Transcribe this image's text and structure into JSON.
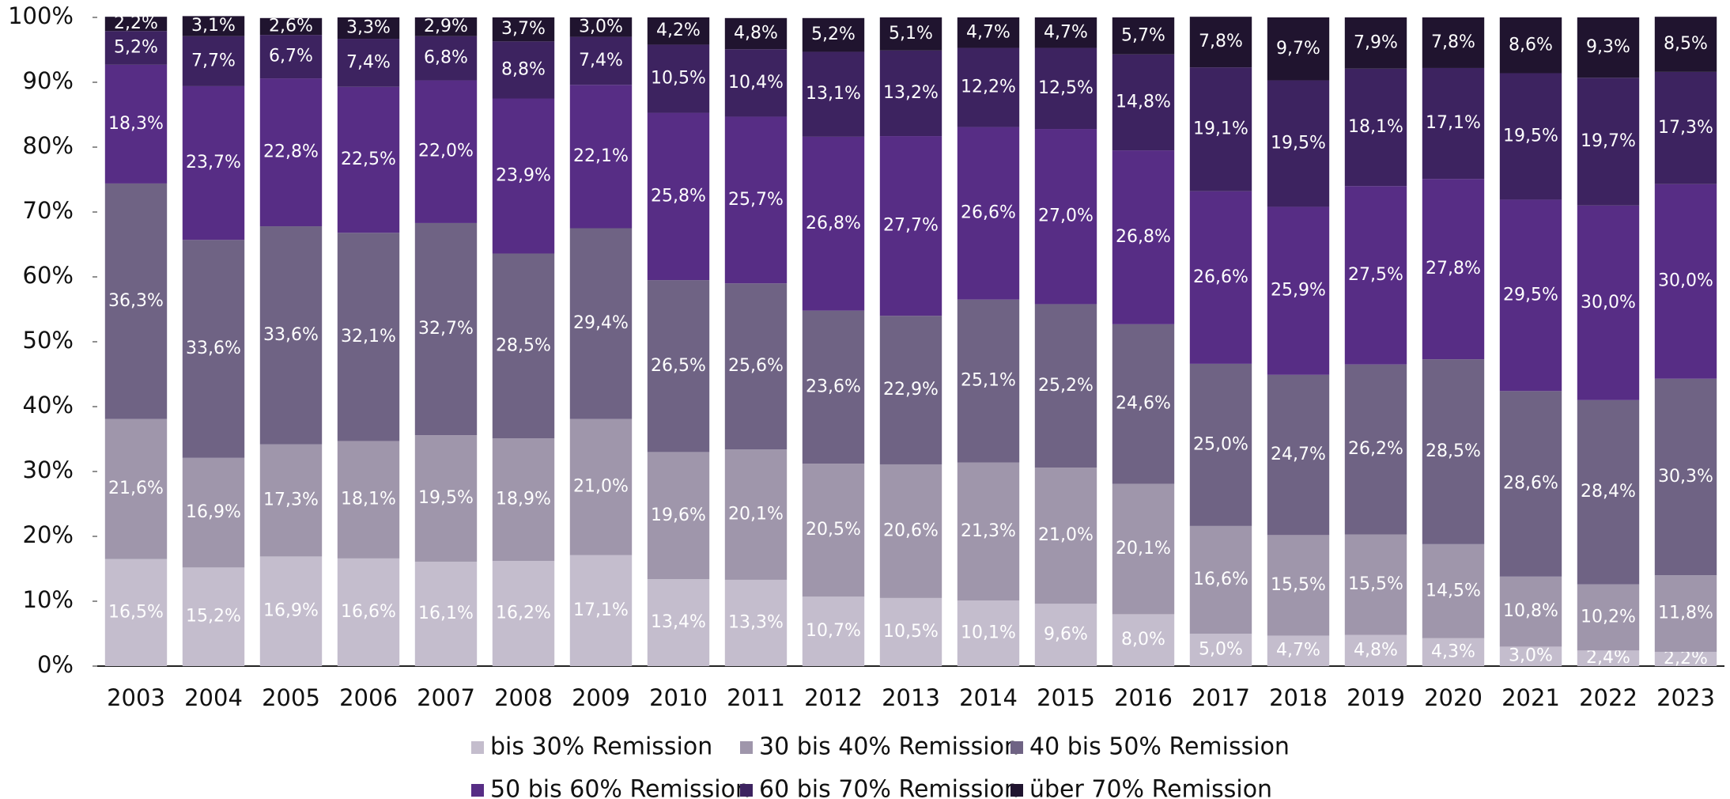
{
  "chart_data": {
    "type": "stacked_bar",
    "categories": [
      "2003",
      "2004",
      "2005",
      "2006",
      "2007",
      "2008",
      "2009",
      "2010",
      "2011",
      "2012",
      "2013",
      "2014",
      "2015",
      "2016",
      "2017",
      "2018",
      "2019",
      "2020",
      "2021",
      "2022",
      "2023"
    ],
    "ylim": [
      0,
      100
    ],
    "yticks": [
      {
        "value": 0,
        "label": "0%"
      },
      {
        "value": 10,
        "label": "10%"
      },
      {
        "value": 20,
        "label": "20%"
      },
      {
        "value": 30,
        "label": "30%"
      },
      {
        "value": 40,
        "label": "40%"
      },
      {
        "value": 50,
        "label": "50%"
      },
      {
        "value": 60,
        "label": "60%"
      },
      {
        "value": 70,
        "label": "70%"
      },
      {
        "value": 80,
        "label": "80%"
      },
      {
        "value": 90,
        "label": "90%"
      },
      {
        "value": 100,
        "label": "100%"
      }
    ],
    "legend": "bottom",
    "series": [
      {
        "name": "bis 30% Remission",
        "color": "#c4bdcd",
        "values": [
          16.5,
          15.2,
          16.9,
          16.6,
          16.1,
          16.2,
          17.1,
          13.4,
          13.3,
          10.7,
          10.5,
          10.1,
          9.6,
          8.0,
          5.0,
          4.7,
          4.8,
          4.3,
          3.0,
          2.4,
          2.2
        ],
        "value_labels": [
          "16,5%",
          "15,2%",
          "16,9%",
          "16,6%",
          "16,1%",
          "16,2%",
          "17,1%",
          "13,4%",
          "13,3%",
          "10,7%",
          "10,5%",
          "10,1%",
          "9,6%",
          "8,0%",
          "5,0%",
          "4,7%",
          "4,8%",
          "4,3%",
          "3,0%",
          "2,4%",
          "2,2%"
        ]
      },
      {
        "name": "30 bis 40% Remission",
        "color": "#9f96ab",
        "values": [
          21.6,
          16.9,
          17.3,
          18.1,
          19.5,
          18.9,
          21.0,
          19.6,
          20.1,
          20.5,
          20.6,
          21.3,
          21.0,
          20.1,
          16.6,
          15.5,
          15.5,
          14.5,
          10.8,
          10.2,
          11.8
        ],
        "value_labels": [
          "21,6%",
          "16,9%",
          "17,3%",
          "18,1%",
          "19,5%",
          "18,9%",
          "21,0%",
          "19,6%",
          "20,1%",
          "20,5%",
          "20,6%",
          "21,3%",
          "21,0%",
          "20,1%",
          "16,6%",
          "15,5%",
          "15,5%",
          "14,5%",
          "10,8%",
          "10,2%",
          "11,8%"
        ]
      },
      {
        "name": "40 bis 50% Remission",
        "color": "#6f6384",
        "values": [
          36.3,
          33.6,
          33.6,
          32.1,
          32.7,
          28.5,
          29.4,
          26.5,
          25.6,
          23.6,
          22.9,
          25.1,
          25.2,
          24.6,
          25.0,
          24.7,
          26.2,
          28.5,
          28.6,
          28.4,
          30.3
        ],
        "value_labels": [
          "36,3%",
          "33,6%",
          "33,6%",
          "32,1%",
          "32,7%",
          "28,5%",
          "29,4%",
          "26,5%",
          "25,6%",
          "23,6%",
          "22,9%",
          "25,1%",
          "25,2%",
          "24,6%",
          "25,0%",
          "24,7%",
          "26,2%",
          "28,5%",
          "28,6%",
          "28,4%",
          "30,3%"
        ]
      },
      {
        "name": "50 bis 60% Remission",
        "color": "#572d85",
        "values": [
          18.3,
          23.7,
          22.8,
          22.5,
          22.0,
          23.9,
          22.1,
          25.8,
          25.7,
          26.8,
          27.7,
          26.6,
          27.0,
          26.8,
          26.6,
          25.9,
          27.5,
          27.8,
          29.5,
          30.0,
          30.0
        ],
        "value_labels": [
          "18,3%",
          "23,7%",
          "22,8%",
          "22,5%",
          "22,0%",
          "23,9%",
          "22,1%",
          "25,8%",
          "25,7%",
          "26,8%",
          "27,7%",
          "26,6%",
          "27,0%",
          "26,8%",
          "26,6%",
          "25,9%",
          "27,5%",
          "27,8%",
          "29,5%",
          "30,0%",
          "30,0%"
        ]
      },
      {
        "name": "60 bis 70% Remission",
        "color": "#3d2360",
        "values": [
          5.2,
          7.7,
          6.7,
          7.4,
          6.8,
          8.8,
          7.4,
          10.5,
          10.4,
          13.1,
          13.2,
          12.2,
          12.5,
          14.8,
          19.1,
          19.5,
          18.1,
          17.1,
          19.5,
          19.7,
          17.3
        ],
        "value_labels": [
          "5,2%",
          "7,7%",
          "6,7%",
          "7,4%",
          "6,8%",
          "8,8%",
          "7,4%",
          "10,5%",
          "10,4%",
          "13,1%",
          "13,2%",
          "12,2%",
          "12,5%",
          "14,8%",
          "19,1%",
          "19,5%",
          "18,1%",
          "17,1%",
          "19,5%",
          "19,7%",
          "17,3%"
        ]
      },
      {
        "name": "über 70% Remission",
        "color": "#20142f",
        "values": [
          2.2,
          3.1,
          2.6,
          3.3,
          2.9,
          3.7,
          3.0,
          4.2,
          4.8,
          5.2,
          5.1,
          4.7,
          4.7,
          5.7,
          7.8,
          9.7,
          7.9,
          7.8,
          8.6,
          9.3,
          8.5
        ],
        "value_labels": [
          "2,2%",
          "3,1%",
          "2,6%",
          "3,3%",
          "2,9%",
          "3,7%",
          "3,0%",
          "4,2%",
          "4,8%",
          "5,2%",
          "5,1%",
          "4,7%",
          "4,7%",
          "5,7%",
          "7,8%",
          "9,7%",
          "7,9%",
          "7,8%",
          "8,6%",
          "9,3%",
          "8,5%"
        ]
      }
    ]
  }
}
